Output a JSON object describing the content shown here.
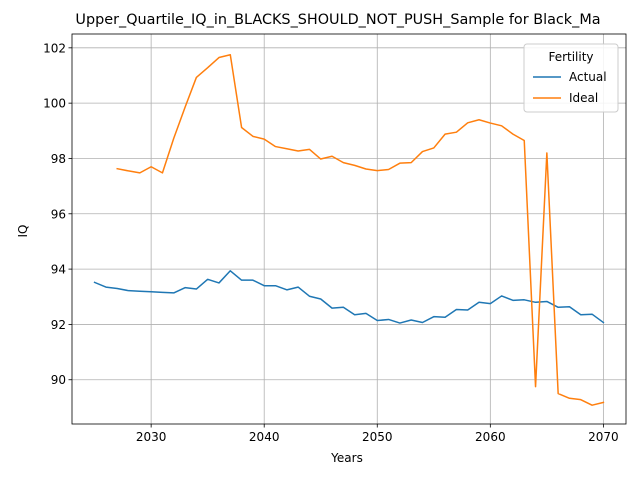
{
  "chart_data": {
    "type": "line",
    "title": "Upper_Quartile_IQ_in_BLACKS_SHOULD_NOT_PUSH_Sample for Black_Ma",
    "xlabel": "Years",
    "ylabel": "IQ",
    "xlim": [
      2023,
      2072
    ],
    "ylim": [
      88.4,
      102.5
    ],
    "xticks": [
      2030,
      2040,
      2050,
      2060,
      2070
    ],
    "yticks": [
      90,
      92,
      94,
      96,
      98,
      100,
      102
    ],
    "grid": true,
    "legend": {
      "title": "Fertility",
      "placement": "top-right"
    },
    "series": [
      {
        "name": "Actual",
        "color": "#1f77b4",
        "x": [
          2025,
          2026,
          2027,
          2028,
          2029,
          2030,
          2031,
          2032,
          2033,
          2034,
          2035,
          2036,
          2037,
          2038,
          2039,
          2040,
          2041,
          2042,
          2043,
          2044,
          2045,
          2046,
          2047,
          2048,
          2049,
          2050,
          2051,
          2052,
          2053,
          2054,
          2055,
          2056,
          2057,
          2058,
          2059,
          2060,
          2061,
          2062,
          2063,
          2064,
          2065,
          2066,
          2067,
          2068,
          2069,
          2070
        ],
        "y": [
          93.52,
          93.35,
          93.3,
          93.22,
          93.2,
          93.18,
          93.16,
          93.14,
          93.33,
          93.28,
          93.63,
          93.5,
          93.94,
          93.6,
          93.6,
          93.4,
          93.4,
          93.25,
          93.35,
          93.02,
          92.92,
          92.59,
          92.62,
          92.35,
          92.4,
          92.14,
          92.18,
          92.05,
          92.16,
          92.07,
          92.28,
          92.26,
          92.54,
          92.52,
          92.8,
          92.75,
          93.03,
          92.87,
          92.89,
          92.8,
          92.83,
          92.62,
          92.64,
          92.35,
          92.37,
          92.07
        ]
      },
      {
        "name": "Ideal",
        "color": "#ff7f0e",
        "x": [
          2027,
          2028,
          2029,
          2030,
          2031,
          2032,
          2033,
          2034,
          2035,
          2036,
          2037,
          2038,
          2039,
          2040,
          2041,
          2042,
          2043,
          2044,
          2045,
          2046,
          2047,
          2048,
          2049,
          2050,
          2051,
          2052,
          2053,
          2054,
          2055,
          2056,
          2057,
          2058,
          2059,
          2060,
          2061,
          2062,
          2063,
          2064,
          2065,
          2066,
          2067,
          2068,
          2069,
          2070
        ],
        "y": [
          97.63,
          97.55,
          97.48,
          97.7,
          97.48,
          98.73,
          99.85,
          100.93,
          101.28,
          101.65,
          101.75,
          99.12,
          98.8,
          98.7,
          98.43,
          98.35,
          98.27,
          98.33,
          97.98,
          98.08,
          97.85,
          97.75,
          97.62,
          97.56,
          97.6,
          97.83,
          97.85,
          98.25,
          98.38,
          98.88,
          98.95,
          99.29,
          99.4,
          99.28,
          99.18,
          98.88,
          98.65,
          89.75,
          98.2,
          89.5,
          89.33,
          89.28,
          89.08,
          89.18
        ]
      }
    ]
  }
}
